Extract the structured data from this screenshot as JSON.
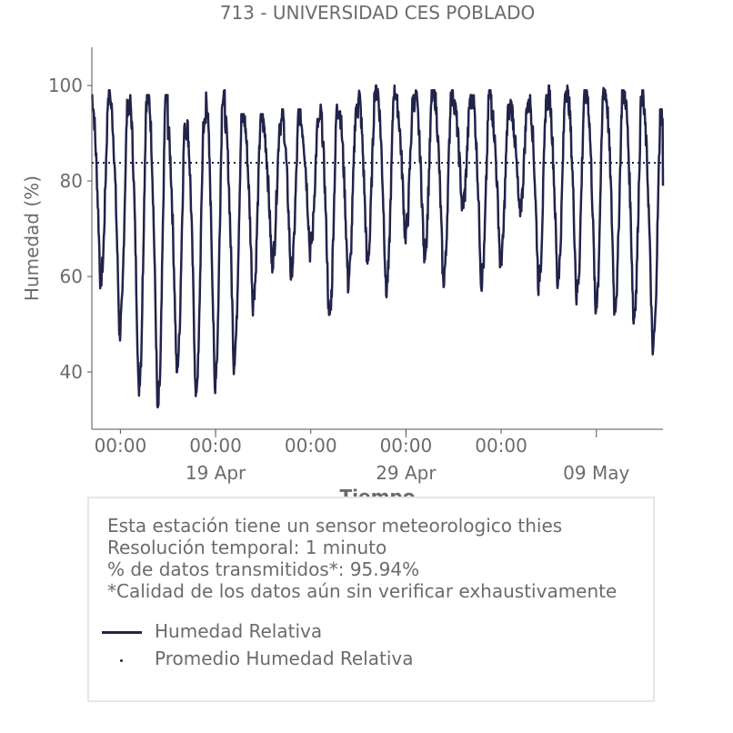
{
  "chart_data": {
    "type": "line",
    "title": "713 - UNIVERSIDAD CES POBLADO",
    "xlabel": "Tiempo",
    "ylabel": "Humedad (%)",
    "ylim": [
      28,
      108
    ],
    "yticks": [
      40,
      60,
      80,
      100
    ],
    "x_unit": "days",
    "x_start": "2023-04-12T12:00",
    "x_end": "2023-05-12T12:00",
    "xticks": [
      {
        "date": "2023-04-14T00:00",
        "label": "00:00"
      },
      {
        "date": "2023-04-19T00:00",
        "label": "00:00"
      },
      {
        "date": "2023-04-24T00:00",
        "label": "00:00"
      },
      {
        "date": "2023-04-29T00:00",
        "label": "00:00"
      },
      {
        "date": "2023-05-04T00:00",
        "label": "00:00"
      }
    ],
    "xticks_major": [
      {
        "date": "2023-04-19T00:00",
        "label": "19 Apr"
      },
      {
        "date": "2023-04-29T00:00",
        "label": "29 Apr"
      },
      {
        "date": "2023-05-09T00:00",
        "label": "09 May"
      }
    ],
    "grid": false,
    "series": [
      {
        "name": "Humedad Relativa",
        "color": "#22234a",
        "style": "solid",
        "daily_max": [
          98,
          96,
          97,
          97,
          91,
          92,
          98,
          93,
          93,
          92,
          94,
          92,
          95,
          95,
          99,
          99,
          97,
          98,
          98,
          97,
          98,
          95,
          96,
          97,
          99,
          98,
          99,
          98,
          98,
          94,
          78
        ],
        "daily_min": [
          58,
          47,
          35,
          30,
          39,
          34,
          36,
          41,
          54,
          62,
          60,
          65,
          50,
          58,
          62,
          56,
          68,
          64,
          58,
          74,
          58,
          62,
          73,
          58,
          58,
          55,
          52,
          52,
          50,
          43,
          45
        ]
      },
      {
        "name": "Promedio Humedad Relativa",
        "color": "#22234a",
        "style": "dotted",
        "value": 83.8
      }
    ]
  },
  "info": {
    "line1": "Esta estación tiene un sensor meteorologico thies",
    "line2": "Resolución temporal: 1 minuto",
    "line3": "% de datos transmitidos*: 95.94%",
    "line4": "*Calidad de los datos aún sin verificar exhaustivamente"
  },
  "legend": {
    "item1": "Humedad Relativa",
    "item2": "Promedio Humedad Relativa"
  }
}
